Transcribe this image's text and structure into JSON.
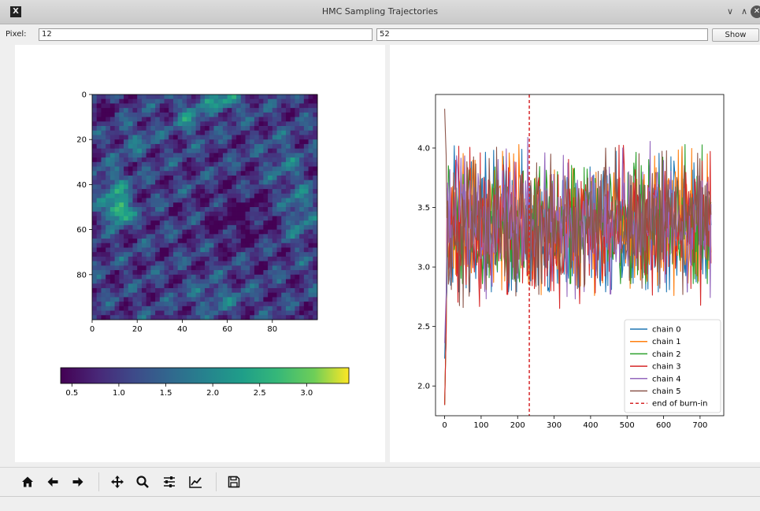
{
  "window": {
    "title": "HMC Sampling Trajectories",
    "minimize_glyph": "∨",
    "maximize_glyph": "∧",
    "close_glyph": "✕"
  },
  "controls": {
    "pixel_label": "Pixel:",
    "row_value": "12",
    "col_value": "52",
    "show_label": "Show"
  },
  "toolbar": {
    "icons": [
      "home-icon",
      "back-icon",
      "forward-icon",
      "pan-icon",
      "zoom-icon",
      "configure-subplots-icon",
      "edit-axis-icon",
      "save-icon"
    ]
  },
  "chart_data": [
    {
      "type": "heatmap",
      "colormap": "viridis",
      "xticks": [
        "0",
        "20",
        "40",
        "60",
        "80"
      ],
      "yticks": [
        "0",
        "20",
        "40",
        "60",
        "80"
      ],
      "xlim": [
        0,
        100
      ],
      "ylim": [
        0,
        100
      ],
      "colorbar": {
        "ticks": [
          "0.5",
          "1.0",
          "1.5",
          "2.0",
          "2.5",
          "3.0"
        ],
        "range": [
          0.38,
          3.45
        ],
        "orientation": "horizontal"
      }
    },
    {
      "type": "line",
      "xticks": [
        "0",
        "100",
        "200",
        "300",
        "400",
        "500",
        "600",
        "700"
      ],
      "yticks": [
        "2.0",
        "2.5",
        "3.0",
        "3.5",
        "4.0"
      ],
      "xlim": [
        -25,
        765
      ],
      "ylim": [
        1.75,
        4.45
      ],
      "burn_in_x": 232,
      "legend_position": "lower-right",
      "legend": [
        "chain 0",
        "chain 1",
        "chain 2",
        "chain 3",
        "chain 4",
        "chain 5",
        "end of burn-in"
      ],
      "series": [
        {
          "name": "chain 0",
          "color": "#1f77b4",
          "start": 2.23,
          "mean": 3.33,
          "min": 2.79,
          "max": 4.02
        },
        {
          "name": "chain 1",
          "color": "#ff7f0e",
          "start": 1.84,
          "mean": 3.38,
          "min": 2.76,
          "max": 4.03
        },
        {
          "name": "chain 2",
          "color": "#2ca02c",
          "start": 1.84,
          "mean": 3.36,
          "min": 2.86,
          "max": 4.03
        },
        {
          "name": "chain 3",
          "color": "#d62728",
          "start": 1.84,
          "mean": 3.33,
          "min": 2.53,
          "max": 4.12
        },
        {
          "name": "chain 4",
          "color": "#9467bd",
          "start": 2.36,
          "mean": 3.38,
          "min": 2.72,
          "max": 4.09
        },
        {
          "name": "chain 5",
          "color": "#8c564b",
          "start": 4.33,
          "mean": 3.36,
          "min": 2.45,
          "max": 4.14
        }
      ],
      "burn_in_color": "#d62728"
    }
  ]
}
